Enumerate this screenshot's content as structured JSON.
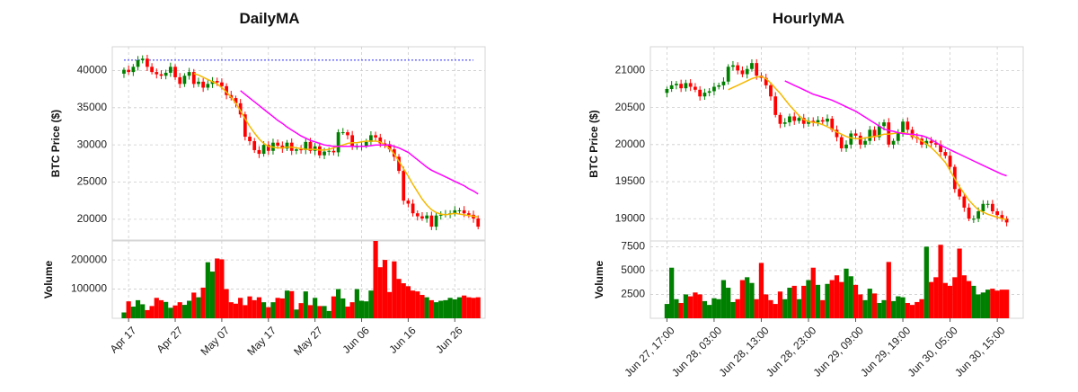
{
  "colors": {
    "up": "#008000",
    "down": "#ff0000",
    "ma_fast": "#f5b800",
    "ma_slow": "#ff00ff",
    "hline": "#2a2aff",
    "grid": "#cccccc",
    "frame": "#d6d6d6"
  },
  "chart_data": [
    {
      "type": "candlestick",
      "title": "DailyMA",
      "ylabel": "BTC Price ($)",
      "volume_label": "Volume",
      "price_ylim": [
        17200,
        43200
      ],
      "price_ticks": [
        20000,
        25000,
        30000,
        35000,
        40000
      ],
      "price_tick_labels": [
        "20000",
        "25000",
        "30000",
        "35000",
        "40000"
      ],
      "volume_ylim": [
        0,
        265000
      ],
      "volume_ticks": [
        100000,
        200000
      ],
      "volume_tick_labels": [
        "100000",
        "200000"
      ],
      "x_ticks": [
        1,
        11,
        21,
        31,
        41,
        51,
        61,
        71
      ],
      "x_tick_labels": [
        "Apr 17",
        "Apr 27",
        "May 07",
        "May 17",
        "May 27",
        "Jun 06",
        "Jun 16",
        "Jun 26"
      ],
      "x_range": [
        -2.5,
        77.5
      ],
      "hline": 41400,
      "grid": true,
      "closes": [
        40100,
        39800,
        40500,
        41400,
        41600,
        40500,
        39800,
        39500,
        39300,
        39700,
        40500,
        39100,
        38200,
        39300,
        39800,
        38200,
        38500,
        37700,
        38200,
        38600,
        38400,
        37900,
        36700,
        36300,
        35600,
        34100,
        31100,
        30500,
        29300,
        28800,
        30000,
        29200,
        30300,
        29900,
        29500,
        30300,
        29200,
        29400,
        29300,
        30400,
        29200,
        29800,
        28600,
        29100,
        29200,
        29000,
        31700,
        31700,
        31300,
        29800,
        29800,
        29900,
        30400,
        31300,
        31000,
        30200,
        30100,
        29400,
        28400,
        26500,
        22500,
        22100,
        20800,
        20400,
        20100,
        20500,
        19000,
        20500,
        20600,
        20700,
        20800,
        21200,
        21200,
        20800,
        20600,
        20100,
        19000
      ],
      "volumes": [
        20000,
        58000,
        40000,
        62000,
        48000,
        28000,
        42000,
        70000,
        62000,
        56000,
        36000,
        44000,
        55000,
        46000,
        60000,
        88000,
        72000,
        105000,
        192000,
        160000,
        205000,
        202000,
        100000,
        55000,
        50000,
        70000,
        45000,
        75000,
        62000,
        72000,
        55000,
        38000,
        55000,
        70000,
        68000,
        95000,
        93000,
        30000,
        52000,
        92000,
        45000,
        70000,
        42000,
        42000,
        25000,
        75000,
        100000,
        68000,
        40000,
        55000,
        100000,
        60000,
        58000,
        95000,
        265000,
        175000,
        200000,
        90000,
        195000,
        135000,
        120000,
        110000,
        95000,
        92000,
        80000,
        72000,
        62000,
        55000,
        60000,
        62000,
        70000,
        65000,
        72000,
        78000,
        72000,
        70000,
        72000
      ],
      "ma_fast": [
        null,
        null,
        null,
        null,
        null,
        null,
        null,
        null,
        null,
        null,
        null,
        null,
        null,
        null,
        null,
        39600,
        39400,
        39100,
        38800,
        38500,
        38200,
        37700,
        37100,
        36400,
        35600,
        34600,
        33500,
        32500,
        31600,
        30800,
        30200,
        29800,
        29700,
        29600,
        29600,
        29700,
        29700,
        29600,
        29500,
        29400,
        29400,
        29400,
        29300,
        29300,
        29400,
        29600,
        29800,
        30000,
        30200,
        30300,
        30300,
        30400,
        30500,
        30500,
        30500,
        30400,
        30000,
        29500,
        28800,
        27800,
        26800,
        25800,
        24700,
        23700,
        22700,
        21900,
        21300,
        20900,
        20700,
        20600,
        20700,
        20800,
        20700,
        20600,
        20500,
        20400,
        20300
      ],
      "ma_slow": [
        null,
        null,
        null,
        null,
        null,
        null,
        null,
        null,
        null,
        null,
        null,
        null,
        null,
        null,
        null,
        null,
        null,
        null,
        null,
        null,
        null,
        null,
        null,
        null,
        null,
        37300,
        36800,
        36300,
        35800,
        35300,
        34800,
        34300,
        33800,
        33300,
        32900,
        32400,
        32000,
        31600,
        31200,
        30900,
        30600,
        30400,
        30200,
        30000,
        29900,
        29800,
        29800,
        29800,
        29800,
        29800,
        29800,
        29800,
        29800,
        29900,
        30000,
        30000,
        30000,
        30000,
        29800,
        29600,
        29300,
        29000,
        28500,
        28000,
        27500,
        27000,
        26600,
        26300,
        26000,
        25700,
        25400,
        25100,
        24800,
        24500,
        24100,
        23800,
        23400
      ]
    },
    {
      "type": "candlestick",
      "title": "HourlyMA",
      "ylabel": "BTC Price ($)",
      "volume_label": "Volume",
      "price_ylim": [
        18700,
        21320
      ],
      "price_ticks": [
        19000,
        19500,
        20000,
        20500,
        21000
      ],
      "price_tick_labels": [
        "19000",
        "19500",
        "20000",
        "20500",
        "21000"
      ],
      "volume_ylim": [
        0,
        8100
      ],
      "volume_ticks": [
        2500,
        5000,
        7500
      ],
      "volume_tick_labels": [
        "2500",
        "5000",
        "7500"
      ],
      "x_ticks": [
        0,
        10,
        20,
        30,
        40,
        50,
        60,
        70
      ],
      "x_tick_labels": [
        "Jun 27, 17:00",
        "Jun 28, 03:00",
        "Jun 28, 13:00",
        "Jun 28, 23:00",
        "Jun 29, 09:00",
        "Jun 29, 19:00",
        "Jun 30, 05:00",
        "Jun 30, 15:00"
      ],
      "x_range": [
        -3.5,
        75.5
      ],
      "grid": true,
      "closes": [
        20750,
        20800,
        20820,
        20760,
        20830,
        20780,
        20740,
        20650,
        20700,
        20720,
        20780,
        20800,
        20850,
        21050,
        21070,
        21000,
        20950,
        21020,
        21100,
        20930,
        20900,
        20800,
        20650,
        20400,
        20280,
        20300,
        20380,
        20320,
        20360,
        20280,
        20320,
        20300,
        20330,
        20310,
        20350,
        20200,
        20100,
        19950,
        20000,
        20150,
        20120,
        20000,
        20050,
        20200,
        20100,
        20250,
        20300,
        20000,
        20050,
        20150,
        20310,
        20200,
        20100,
        20080,
        20000,
        20050,
        20020,
        20000,
        19900,
        19850,
        19700,
        19400,
        19300,
        19150,
        19000,
        19000,
        19100,
        19200,
        19200,
        19100,
        19050,
        19000,
        18950
      ],
      "volumes": [
        1500,
        5300,
        2000,
        1600,
        2500,
        2300,
        2700,
        2500,
        1800,
        1400,
        2100,
        2000,
        4000,
        3200,
        1700,
        2000,
        4000,
        4300,
        3700,
        2000,
        5800,
        2500,
        1900,
        1500,
        2800,
        2000,
        3200,
        3400,
        2000,
        3400,
        4000,
        5300,
        3500,
        1900,
        3600,
        4000,
        4500,
        3800,
        5200,
        4400,
        3500,
        2500,
        1900,
        3100,
        2600,
        1600,
        1900,
        5900,
        1800,
        2300,
        2200,
        1600,
        1400,
        1700,
        2000,
        7500,
        3800,
        4300,
        7700,
        3700,
        3400,
        4300,
        7300,
        4500,
        3900,
        3400,
        2500,
        2700,
        3000,
        3100,
        2900,
        3000,
        3000
      ],
      "ma_fast": [
        null,
        null,
        null,
        null,
        null,
        null,
        null,
        null,
        null,
        null,
        null,
        null,
        null,
        20740,
        20770,
        20800,
        20830,
        20860,
        20890,
        20910,
        20920,
        20890,
        20830,
        20760,
        20690,
        20610,
        20530,
        20460,
        20390,
        20340,
        20310,
        20300,
        20290,
        20270,
        20240,
        20210,
        20170,
        20140,
        20110,
        20090,
        20080,
        20080,
        20090,
        20100,
        20110,
        20120,
        20140,
        20140,
        20150,
        20160,
        20160,
        20150,
        20120,
        20090,
        20050,
        20010,
        19960,
        19900,
        19830,
        19760,
        19650,
        19540,
        19430,
        19340,
        19250,
        19180,
        19120,
        19090,
        19060,
        19040,
        19020,
        19000,
        18990
      ],
      "ma_slow": [
        null,
        null,
        null,
        null,
        null,
        null,
        null,
        null,
        null,
        null,
        null,
        null,
        null,
        null,
        null,
        null,
        null,
        null,
        null,
        null,
        null,
        null,
        null,
        null,
        null,
        20860,
        20830,
        20800,
        20770,
        20740,
        20710,
        20680,
        20660,
        20640,
        20620,
        20600,
        20570,
        20540,
        20510,
        20480,
        20450,
        20410,
        20370,
        20330,
        20290,
        20250,
        20210,
        20190,
        20180,
        20160,
        20150,
        20140,
        20140,
        20130,
        20120,
        20100,
        20070,
        20030,
        19990,
        19960,
        19930,
        19900,
        19870,
        19840,
        19810,
        19780,
        19750,
        19720,
        19690,
        19660,
        19630,
        19600,
        19580
      ]
    }
  ]
}
